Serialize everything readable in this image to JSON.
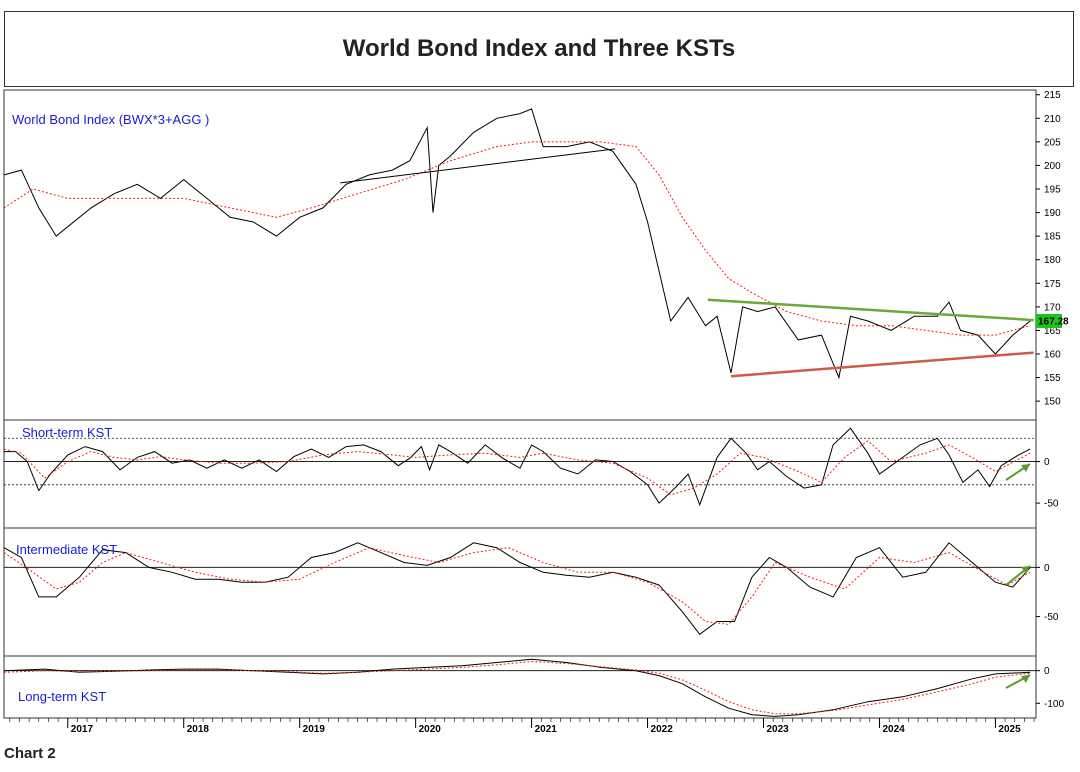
{
  "title": "World Bond Index and Three KSTs",
  "caption": "Chart 2",
  "colors": {
    "price": "#000000",
    "average": "#e8231a",
    "green_line": "#6aaa3a",
    "red_line": "#d05a4a",
    "arrow": "#5a9a2a",
    "panel_title": "#1a1ad4",
    "last_price_badge": "#19c719"
  },
  "chart_data": {
    "type": "line",
    "title": "World Bond Index and Three KSTs",
    "x_ticks": [
      "2017",
      "2018",
      "2019",
      "2020",
      "2021",
      "2022",
      "2023",
      "2024",
      "2025"
    ],
    "xlim": [
      2016.45,
      2025.35
    ],
    "panels": [
      {
        "name": "World Bond Index (BWX*3+AGG )",
        "ylim": [
          146,
          216
        ],
        "y_ticks": [
          150,
          155,
          160,
          165,
          170,
          175,
          180,
          185,
          190,
          195,
          200,
          205,
          210,
          215
        ],
        "last_value_label": "167.28",
        "series": [
          {
            "style": "price",
            "x": [
              2016.45,
              2016.6,
              2016.75,
              2016.9,
              2017.0,
              2017.2,
              2017.4,
              2017.6,
              2017.8,
              2018.0,
              2018.2,
              2018.4,
              2018.6,
              2018.8,
              2019.0,
              2019.2,
              2019.4,
              2019.6,
              2019.8,
              2019.95,
              2020.1,
              2020.15,
              2020.2,
              2020.3,
              2020.5,
              2020.7,
              2020.9,
              2021.0,
              2021.1,
              2021.3,
              2021.5,
              2021.7,
              2021.9,
              2022.0,
              2022.2,
              2022.35,
              2022.5,
              2022.6,
              2022.72,
              2022.82,
              2022.95,
              2023.1,
              2023.3,
              2023.5,
              2023.65,
              2023.75,
              2023.9,
              2024.1,
              2024.3,
              2024.5,
              2024.6,
              2024.7,
              2024.85,
              2025.0,
              2025.15,
              2025.3
            ],
            "y": [
              198,
              199,
              191,
              185,
              187,
              191,
              194,
              196,
              193,
              197,
              193,
              189,
              188,
              185,
              189,
              191,
              196,
              198,
              199,
              201,
              208,
              190,
              200,
              202,
              207,
              210,
              211,
              212,
              204,
              204,
              205,
              203,
              196,
              188,
              167,
              172,
              166,
              168,
              156,
              170,
              169,
              170,
              163,
              164,
              155,
              168,
              167,
              165,
              168,
              168,
              171,
              165,
              164,
              160,
              164,
              167
            ]
          },
          {
            "style": "average",
            "x": [
              2016.45,
              2016.7,
              2017.0,
              2017.3,
              2017.6,
              2018.0,
              2018.4,
              2018.8,
              2019.1,
              2019.5,
              2019.9,
              2020.3,
              2020.7,
              2021.0,
              2021.3,
              2021.6,
              2021.9,
              2022.1,
              2022.3,
              2022.5,
              2022.7,
              2022.9,
              2023.2,
              2023.5,
              2023.8,
              2024.1,
              2024.4,
              2024.7,
              2025.0,
              2025.3
            ],
            "y": [
              191,
              195,
              193,
              193,
              193,
              193,
              191,
              189,
              191,
              194,
              197,
              201,
              204,
              205,
              205,
              205,
              204,
              198,
              189,
              182,
              176,
              173,
              169,
              167,
              166,
              166,
              165,
              164,
              164,
              166
            ]
          },
          {
            "style": "green_line",
            "x": [
              2022.52,
              2025.33
            ],
            "y": [
              171.5,
              167.2
            ]
          },
          {
            "style": "red_line",
            "x": [
              2022.72,
              2025.33
            ],
            "y": [
              155.3,
              160.3
            ]
          },
          {
            "style": "thin_line",
            "x": [
              2019.35,
              2021.72
            ],
            "y": [
              196.3,
              203.5
            ]
          }
        ]
      },
      {
        "name": "Short-term KST",
        "ylim": [
          -80,
          50
        ],
        "y_ticks": [
          0,
          -50
        ],
        "reference_lines": [
          {
            "y": 0,
            "style": "solid"
          },
          {
            "y": 28,
            "style": "dotted"
          },
          {
            "y": -28,
            "style": "dotted"
          }
        ],
        "series": [
          {
            "style": "price",
            "x": [
              2016.45,
              2016.55,
              2016.65,
              2016.75,
              2016.85,
              2017.0,
              2017.15,
              2017.3,
              2017.45,
              2017.6,
              2017.75,
              2017.9,
              2018.05,
              2018.2,
              2018.35,
              2018.5,
              2018.65,
              2018.8,
              2018.95,
              2019.1,
              2019.25,
              2019.4,
              2019.55,
              2019.7,
              2019.85,
              2019.95,
              2020.05,
              2020.12,
              2020.2,
              2020.3,
              2020.45,
              2020.6,
              2020.75,
              2020.9,
              2021.0,
              2021.1,
              2021.25,
              2021.4,
              2021.55,
              2021.7,
              2021.85,
              2022.0,
              2022.1,
              2022.25,
              2022.35,
              2022.45,
              2022.6,
              2022.72,
              2022.85,
              2022.95,
              2023.05,
              2023.2,
              2023.35,
              2023.5,
              2023.6,
              2023.75,
              2023.9,
              2024.0,
              2024.2,
              2024.35,
              2024.5,
              2024.6,
              2024.72,
              2024.85,
              2024.95,
              2025.05,
              2025.2,
              2025.3
            ],
            "y": [
              12,
              12,
              0,
              -35,
              -15,
              8,
              18,
              12,
              -10,
              5,
              12,
              -2,
              2,
              -8,
              2,
              -8,
              2,
              -12,
              6,
              15,
              5,
              18,
              20,
              12,
              -5,
              4,
              18,
              -10,
              20,
              12,
              -2,
              20,
              4,
              -8,
              20,
              12,
              -8,
              -15,
              2,
              0,
              -12,
              -28,
              -50,
              -30,
              -15,
              -52,
              5,
              28,
              10,
              -10,
              0,
              -18,
              -32,
              -28,
              20,
              40,
              10,
              -15,
              5,
              20,
              28,
              8,
              -25,
              -10,
              -30,
              -5,
              8,
              15
            ]
          },
          {
            "style": "average",
            "x": [
              2016.45,
              2016.6,
              2016.8,
              2017.0,
              2017.2,
              2017.4,
              2017.6,
              2017.8,
              2018.0,
              2018.3,
              2018.6,
              2018.9,
              2019.2,
              2019.5,
              2019.8,
              2020.0,
              2020.3,
              2020.6,
              2020.9,
              2021.1,
              2021.4,
              2021.7,
              2022.0,
              2022.2,
              2022.4,
              2022.6,
              2022.8,
              2023.0,
              2023.3,
              2023.5,
              2023.7,
              2023.9,
              2024.1,
              2024.4,
              2024.6,
              2024.8,
              2025.0,
              2025.3
            ],
            "y": [
              15,
              10,
              -20,
              0,
              12,
              5,
              2,
              6,
              2,
              -2,
              -2,
              0,
              8,
              12,
              8,
              5,
              8,
              10,
              5,
              10,
              2,
              -2,
              -20,
              -40,
              -32,
              -15,
              10,
              5,
              -12,
              -25,
              5,
              25,
              0,
              10,
              20,
              5,
              -12,
              10
            ]
          }
        ]
      },
      {
        "name": "Intermediate KST",
        "ylim": [
          -90,
          40
        ],
        "y_ticks": [
          0,
          -50
        ],
        "reference_lines": [
          {
            "y": 0,
            "style": "solid"
          }
        ],
        "series": [
          {
            "style": "price",
            "x": [
              2016.45,
              2016.6,
              2016.75,
              2016.9,
              2017.1,
              2017.3,
              2017.5,
              2017.7,
              2017.9,
              2018.1,
              2018.3,
              2018.5,
              2018.7,
              2018.9,
              2019.1,
              2019.3,
              2019.5,
              2019.7,
              2019.9,
              2020.1,
              2020.3,
              2020.5,
              2020.7,
              2020.9,
              2021.1,
              2021.3,
              2021.5,
              2021.7,
              2021.9,
              2022.1,
              2022.3,
              2022.45,
              2022.6,
              2022.75,
              2022.9,
              2023.05,
              2023.2,
              2023.4,
              2023.6,
              2023.8,
              2024.0,
              2024.2,
              2024.4,
              2024.6,
              2024.8,
              2025.0,
              2025.15,
              2025.3
            ],
            "y": [
              20,
              10,
              -30,
              -30,
              -10,
              18,
              15,
              0,
              -5,
              -12,
              -12,
              -15,
              -15,
              -10,
              10,
              15,
              25,
              15,
              5,
              2,
              10,
              25,
              20,
              5,
              -5,
              -8,
              -10,
              -5,
              -10,
              -18,
              -45,
              -68,
              -55,
              -55,
              -10,
              10,
              0,
              -20,
              -30,
              10,
              20,
              -10,
              -5,
              25,
              5,
              -15,
              -20,
              0
            ]
          },
          {
            "style": "average",
            "x": [
              2016.45,
              2016.7,
              2016.9,
              2017.1,
              2017.3,
              2017.5,
              2017.8,
              2018.1,
              2018.4,
              2018.7,
              2019.0,
              2019.3,
              2019.6,
              2019.9,
              2020.2,
              2020.5,
              2020.8,
              2021.1,
              2021.4,
              2021.7,
              2022.0,
              2022.3,
              2022.5,
              2022.7,
              2022.9,
              2023.1,
              2023.4,
              2023.7,
              2024.0,
              2024.3,
              2024.6,
              2024.9,
              2025.1,
              2025.3
            ],
            "y": [
              15,
              -5,
              -22,
              -15,
              5,
              15,
              5,
              -5,
              -12,
              -15,
              -12,
              5,
              20,
              12,
              5,
              15,
              20,
              5,
              -5,
              -5,
              -15,
              -35,
              -55,
              -58,
              -30,
              5,
              -10,
              -22,
              10,
              5,
              15,
              -5,
              -18,
              -5
            ]
          }
        ]
      },
      {
        "name": "Long-term KST",
        "ylim": [
          -145,
          45
        ],
        "y_ticks": [
          0,
          -100
        ],
        "reference_lines": [
          {
            "y": 0,
            "style": "solid"
          }
        ],
        "series": [
          {
            "style": "price",
            "x": [
              2016.45,
              2016.8,
              2017.1,
              2017.4,
              2017.7,
              2018.0,
              2018.3,
              2018.6,
              2018.9,
              2019.2,
              2019.5,
              2019.8,
              2020.1,
              2020.4,
              2020.7,
              2021.0,
              2021.3,
              2021.6,
              2021.9,
              2022.1,
              2022.3,
              2022.5,
              2022.7,
              2022.9,
              2023.1,
              2023.3,
              2023.6,
              2023.9,
              2024.2,
              2024.5,
              2024.8,
              2025.0,
              2025.3
            ],
            "y": [
              0,
              5,
              -5,
              -2,
              2,
              5,
              5,
              0,
              -5,
              -10,
              -5,
              5,
              10,
              15,
              25,
              35,
              25,
              10,
              0,
              -15,
              -40,
              -80,
              -115,
              -135,
              -140,
              -135,
              -120,
              -95,
              -80,
              -55,
              -25,
              -10,
              -5
            ]
          },
          {
            "style": "average",
            "x": [
              2016.45,
              2016.8,
              2017.1,
              2017.4,
              2017.7,
              2018.0,
              2018.3,
              2018.6,
              2018.9,
              2019.2,
              2019.5,
              2019.8,
              2020.1,
              2020.4,
              2020.7,
              2021.0,
              2021.3,
              2021.6,
              2021.9,
              2022.1,
              2022.3,
              2022.5,
              2022.7,
              2022.9,
              2023.1,
              2023.3,
              2023.6,
              2023.9,
              2024.2,
              2024.5,
              2024.8,
              2025.0,
              2025.3
            ],
            "y": [
              -5,
              0,
              -3,
              -2,
              0,
              3,
              3,
              0,
              -3,
              -8,
              -5,
              0,
              5,
              10,
              18,
              28,
              22,
              12,
              2,
              -8,
              -28,
              -60,
              -95,
              -120,
              -132,
              -132,
              -122,
              -105,
              -88,
              -65,
              -40,
              -20,
              -8
            ]
          }
        ]
      }
    ]
  }
}
